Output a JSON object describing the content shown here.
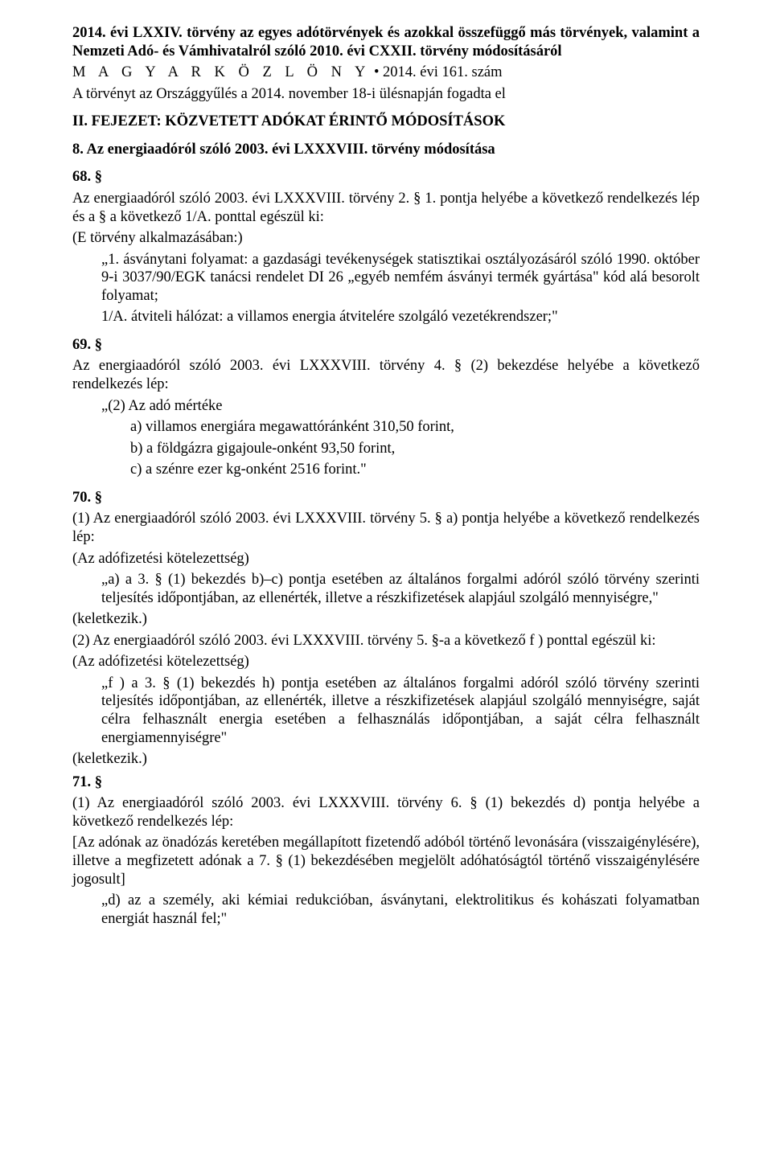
{
  "header": {
    "title_line1": "2014. évi LXXIV. törvény az egyes adótörvények és azokkal összefüggő más törvények, valamint a Nemzeti Adó- és Vámhivatalról szóló 2010. évi CXXII. törvény módosításáról",
    "gazette": "M A G Y A R   K Ö Z L Ö N Y",
    "gazette_issue": "• 2014. évi 161. szám",
    "adopted": "A törvényt az Országgyűlés a 2014. november 18-i ülésnapján fogadta el"
  },
  "chapter": {
    "heading": "II. FEJEZET: KÖZVETETT ADÓKAT ÉRINTŐ MÓDOSÍTÁSOK",
    "subheading": "8. Az energiaadóról szóló 2003. évi LXXXVIII. törvény módosítása"
  },
  "s68": {
    "num": "68. §",
    "lead": "Az energiaadóról szóló 2003. évi LXXXVIII. törvény 2. § 1. pontja helyébe a következő rendelkezés lép és a § a következő 1/A. ponttal egészül ki:",
    "context": "(E törvény alkalmazásában:)",
    "pt1": "„1. ásványtani folyamat: a gazdasági tevékenységek statisztikai osztályozásáról szóló 1990. október 9-i 3037/90/EGK tanácsi rendelet DI 26 „egyéb nemfém ásványi termék gyártása\" kód alá besorolt folyamat;",
    "pt1a": "1/A. átviteli hálózat: a villamos energia átvitelére szolgáló vezetékrendszer;\""
  },
  "s69": {
    "num": "69. §",
    "lead": "Az energiaadóról szóló 2003. évi LXXXVIII. törvény 4. § (2) bekezdése helyébe a következő rendelkezés lép:",
    "q2": "„(2) Az adó mértéke",
    "a": "a) villamos energiára megawattóránként 310,50 forint,",
    "b": "b) a földgázra gigajoule-onként 93,50 forint,",
    "c": "c) a szénre ezer kg-onként 2516 forint.\""
  },
  "s70": {
    "num": "70. §",
    "p1_lead": "(1) Az energiaadóról szóló 2003. évi LXXXVIII. törvény 5. § a) pontja helyébe a következő rendelkezés lép:",
    "p1_context": "(Az adófizetési kötelezettség)",
    "p1_a": "„a) a 3. § (1) bekezdés b)–c) pontja esetében az általános forgalmi adóról szóló törvény szerinti teljesítés időpontjában, az ellenérték, illetve a részkifizetések alapjául szolgáló mennyiségre,\"",
    "p1_kel": "(keletkezik.)",
    "p2_lead": "(2) Az energiaadóról szóló 2003. évi LXXXVIII. törvény 5. §-a a következő f ) ponttal egészül ki:",
    "p2_context": "(Az adófizetési kötelezettség)",
    "p2_f": "„f ) a 3. § (1) bekezdés h) pontja esetében az általános forgalmi adóról szóló törvény szerinti teljesítés időpontjában, az ellenérték, illetve a részkifizetések alapjául szolgáló mennyiségre, saját célra felhasznált energia esetében a felhasználás időpontjában, a saját célra felhasznált energiamennyiségre\"",
    "p2_kel": "(keletkezik.)"
  },
  "s71": {
    "num": "71. §",
    "p1_lead": "(1) Az energiaadóról szóló 2003. évi LXXXVIII. törvény 6. § (1) bekezdés d) pontja helyébe a következő rendelkezés lép:",
    "bracket": "[Az adónak az önadózás keretében megállapított fizetendő adóból történő levonására (visszaigénylésére), illetve a megfizetett adónak a 7. § (1) bekezdésében megjelölt adóhatóságtól történő visszaigénylésére jogosult]",
    "d": "„d) az a személy, aki kémiai redukcióban, ásványtani, elektrolitikus és kohászati folyamatban energiát használ fel;\""
  }
}
